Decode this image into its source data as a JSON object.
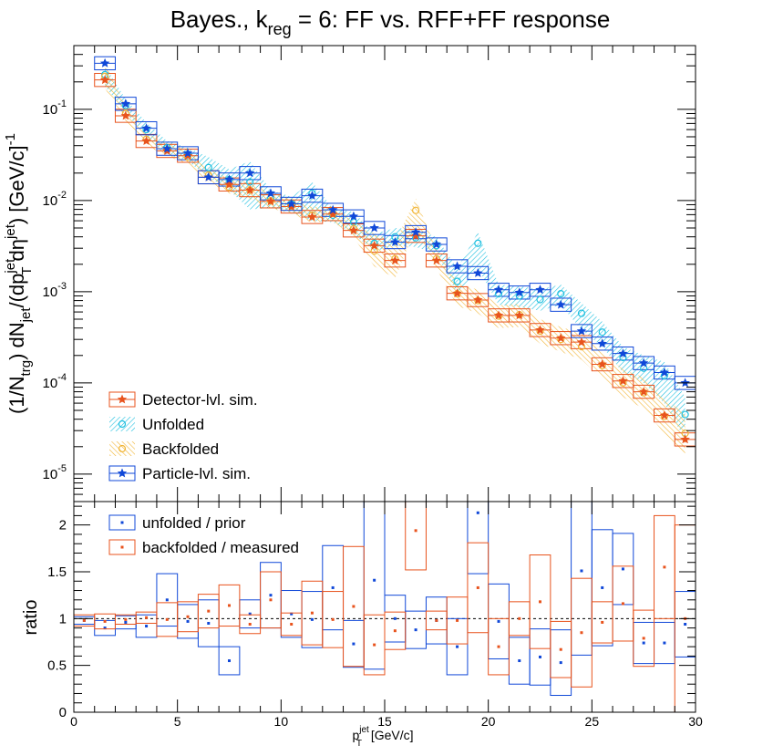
{
  "chart_data": [
    {
      "type": "scatter",
      "title": "Bayes., k",
      "title_sub": "reg",
      "title_rest": " = 6: FF vs. RFF+FF response",
      "ylabel_parts": [
        "(1/N",
        "trg",
        ") dN",
        "jet",
        "/(dp",
        "jet",
        "T",
        " dη",
        "jet",
        ") [GeV/c]",
        "-1"
      ],
      "y_scale": "log",
      "xlim": [
        0,
        30
      ],
      "ylim": [
        5e-06,
        0.5
      ],
      "y_ticks": [
        {
          "value": 0.1,
          "base": "10",
          "exp": "-1"
        },
        {
          "value": 0.01,
          "base": "10",
          "exp": "-2"
        },
        {
          "value": 0.001,
          "base": "10",
          "exp": "-3"
        },
        {
          "value": 0.0001,
          "base": "10",
          "exp": "-4"
        },
        {
          "value": 1e-05,
          "base": "10",
          "exp": "-5"
        }
      ],
      "legend": {
        "position": "bottom-left",
        "entries": [
          "Detector-lvl. sim.",
          "Unfolded",
          "Backfolded",
          "Particle-lvl. sim."
        ]
      },
      "x": [
        1.5,
        2.5,
        3.5,
        4.5,
        5.5,
        6.5,
        7.5,
        8.5,
        9.5,
        10.5,
        11.5,
        12.5,
        13.5,
        14.5,
        15.5,
        16.5,
        17.5,
        18.5,
        19.5,
        20.5,
        21.5,
        22.5,
        23.5,
        24.5,
        25.5,
        26.5,
        27.5,
        28.5,
        29.5
      ],
      "series": [
        {
          "name": "Detector-lvl. sim.",
          "color": "#e8531d",
          "marker": "star",
          "values": [
            0.21,
            0.085,
            0.045,
            0.035,
            0.031,
            0.018,
            0.015,
            0.013,
            0.0098,
            0.0086,
            0.0066,
            0.0071,
            0.0047,
            0.0032,
            0.0022,
            0.0041,
            0.0022,
            0.00096,
            0.00081,
            0.00055,
            0.00055,
            0.00038,
            0.00031,
            0.00028,
            0.00016,
            0.000105,
            8e-05,
            4.4e-05,
            2.4e-05
          ]
        },
        {
          "name": "Unfolded",
          "color": "#1fc0e0",
          "marker": "circle",
          "values": [
            0.24,
            0.11,
            0.06,
            0.038,
            0.032,
            0.023,
            0.017,
            0.016,
            0.0105,
            0.0092,
            0.012,
            0.0069,
            0.0058,
            0.0034,
            0.004,
            0.0039,
            0.0032,
            0.0013,
            0.0034,
            0.00095,
            0.0009,
            0.00082,
            0.00095,
            0.00058,
            0.00036,
            0.00019,
            0.000145,
            0.00012,
            4.5e-05
          ],
          "band_lo": [
            0.18,
            0.092,
            0.05,
            0.032,
            0.027,
            0.018,
            0.013,
            0.008,
            0.0083,
            0.0074,
            0.006,
            0.0058,
            0.0043,
            0.0028,
            0.0032,
            0.0031,
            0.0026,
            0.00095,
            0.0018,
            0.00072,
            0.00068,
            0.00062,
            0.00072,
            0.00038,
            0.00025,
            0.00013,
            0.0001,
            6e-05,
            2.4e-05
          ],
          "band_hi": [
            0.3,
            0.13,
            0.072,
            0.045,
            0.038,
            0.03,
            0.022,
            0.027,
            0.013,
            0.011,
            0.016,
            0.0082,
            0.0075,
            0.0043,
            0.005,
            0.0048,
            0.004,
            0.0018,
            0.0045,
            0.0012,
            0.00115,
            0.00106,
            0.0012,
            0.00075,
            0.00047,
            0.00025,
            0.0002,
            0.00017,
            7e-05
          ]
        },
        {
          "name": "Backfolded",
          "color": "#f2b638",
          "marker": "circle",
          "values": [
            0.23,
            0.09,
            0.047,
            0.036,
            0.03,
            0.019,
            0.014,
            0.013,
            0.0099,
            0.0087,
            0.0069,
            0.0072,
            0.0049,
            0.0028,
            0.0023,
            0.0078,
            0.0023,
            0.00095,
            0.0008,
            0.00054,
            0.00056,
            0.00037,
            0.0003,
            0.00025,
            0.000155,
            0.0001,
            7.8e-05,
            4.3e-05,
            2.8e-05
          ],
          "band_lo": [
            0.17,
            0.075,
            0.04,
            0.031,
            0.025,
            0.016,
            0.012,
            0.0105,
            0.0082,
            0.0072,
            0.0057,
            0.006,
            0.0039,
            0.0019,
            0.0014,
            0.005,
            0.0018,
            0.0007,
            0.00058,
            0.0004,
            0.00041,
            0.00027,
            0.00022,
            0.00018,
            0.00011,
            7e-05,
            5.2e-05,
            2.8e-05,
            1.6e-05
          ],
          "band_hi": [
            0.32,
            0.11,
            0.055,
            0.042,
            0.036,
            0.023,
            0.017,
            0.016,
            0.012,
            0.0105,
            0.0085,
            0.0087,
            0.006,
            0.0043,
            0.0035,
            0.0105,
            0.0029,
            0.00125,
            0.00105,
            0.00071,
            0.00074,
            0.0005,
            0.00041,
            0.00035,
            0.00022,
            0.00014,
            0.000115,
            6.8e-05,
            4.5e-05
          ]
        },
        {
          "name": "Particle-lvl. sim.",
          "color": "#1048d8",
          "marker": "star",
          "values": [
            0.32,
            0.115,
            0.062,
            0.037,
            0.033,
            0.018,
            0.017,
            0.02,
            0.012,
            0.0092,
            0.0113,
            0.0079,
            0.0067,
            0.005,
            0.0035,
            0.0045,
            0.0033,
            0.0019,
            0.0016,
            0.00105,
            0.00098,
            0.00105,
            0.00072,
            0.00037,
            0.00027,
            0.00021,
            0.000165,
            0.00013,
            0.0001
          ]
        }
      ]
    },
    {
      "type": "scatter",
      "xlabel": "p",
      "xlabel_sup": "jet",
      "xlabel_sub": "T",
      "xlabel_rest": " [GeV/c]",
      "ylabel": "ratio",
      "xlim": [
        0,
        30
      ],
      "ylim": [
        0,
        2.25
      ],
      "x_ticks": [
        0,
        5,
        10,
        15,
        20,
        25,
        30
      ],
      "y_ticks": [
        0,
        0.5,
        1,
        1.5,
        2
      ],
      "y_tick_labels": [
        "0",
        "0.5",
        "1",
        "1.5",
        "2"
      ],
      "reference_line": 1,
      "legend": {
        "position": "top-left",
        "entries": [
          "unfolded / prior",
          "backfolded / measured"
        ]
      },
      "x": [
        0.5,
        1.5,
        2.5,
        3.5,
        4.5,
        5.5,
        6.5,
        7.5,
        8.5,
        9.5,
        10.5,
        11.5,
        12.5,
        13.5,
        14.5,
        15.5,
        16.5,
        17.5,
        18.5,
        19.5,
        20.5,
        21.5,
        22.5,
        23.5,
        24.5,
        25.5,
        26.5,
        27.5,
        28.5,
        29.5
      ],
      "series": [
        {
          "name": "unfolded / prior",
          "color": "#1048d8",
          "values": [
            0.98,
            0.9,
            0.96,
            0.92,
            1.2,
            0.97,
            0.95,
            0.55,
            1.05,
            1.25,
            1.05,
            0.99,
            1.33,
            0.73,
            1.41,
            1.0,
            0.88,
            0.98,
            0.7,
            2.13,
            0.97,
            0.55,
            0.59,
            0.53,
            1.51,
            1.33,
            1.53,
            0.74,
            0.74,
            0.94
          ],
          "err": [
            0.04,
            0.08,
            0.07,
            0.12,
            0.28,
            0.18,
            0.25,
            0.15,
            0.15,
            0.35,
            0.25,
            0.3,
            0.45,
            0.25,
            0.95,
            0.25,
            0.2,
            0.25,
            0.3,
            0.65,
            0.4,
            0.25,
            0.3,
            0.35,
            0.9,
            0.62,
            0.38,
            0.22,
            0.22,
            0.35
          ]
        },
        {
          "name": "backfolded / measured",
          "color": "#e8531d",
          "values": [
            0.98,
            0.97,
            0.99,
            1.01,
            0.99,
            1.02,
            1.08,
            1.14,
            0.94,
            1.2,
            0.94,
            1.06,
            0.99,
            1.13,
            0.72,
            0.87,
            1.94,
            0.98,
            0.98,
            1.33,
            0.7,
            1.0,
            1.18,
            0.67,
            0.85,
            0.96,
            1.16,
            0.79,
            1.55,
            1.0
          ],
          "err": [
            0.06,
            0.08,
            0.05,
            0.06,
            0.18,
            0.16,
            0.18,
            0.22,
            0.1,
            0.3,
            0.12,
            0.34,
            0.3,
            0.64,
            0.32,
            0.2,
            0.42,
            0.1,
            0.25,
            0.48,
            0.3,
            0.18,
            0.5,
            0.3,
            0.58,
            0.22,
            0.4,
            0.3,
            0.55,
            1.0
          ]
        }
      ]
    }
  ]
}
